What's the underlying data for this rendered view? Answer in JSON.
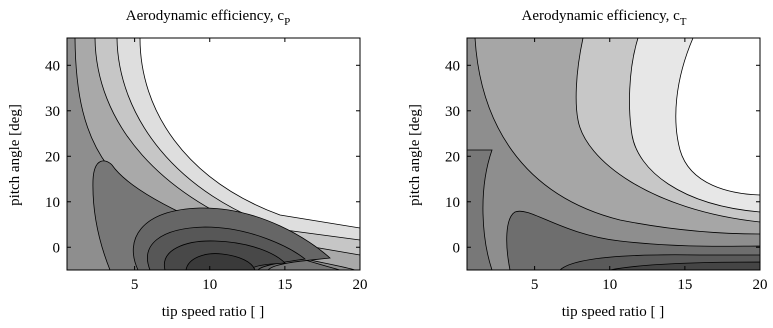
{
  "chart_data": [
    {
      "type": "contour",
      "title": "Aerodynamic efficiency, c",
      "title_subscript": "P",
      "xlabel": "tip speed ratio [ ]",
      "ylabel": "pitch angle [deg]",
      "xlim": [
        0.5,
        20
      ],
      "ylim": [
        -5,
        46
      ],
      "xticks": [
        5,
        10,
        15,
        20
      ],
      "yticks": [
        0,
        10,
        20,
        30,
        40
      ],
      "grid": false,
      "levels": 8,
      "colormap": "grayscale, dark = high"
    },
    {
      "type": "contour",
      "title": "Aerodynamic efficiency, c",
      "title_subscript": "T",
      "xlabel": "tip speed ratio [ ]",
      "ylabel": "pitch angle [deg]",
      "xlim": [
        0.5,
        20
      ],
      "ylim": [
        -5,
        46
      ],
      "xticks": [
        5,
        10,
        15,
        20
      ],
      "yticks": [
        0,
        10,
        20,
        30,
        40
      ],
      "grid": false,
      "levels": 7,
      "colormap": "grayscale, dark = high"
    }
  ]
}
